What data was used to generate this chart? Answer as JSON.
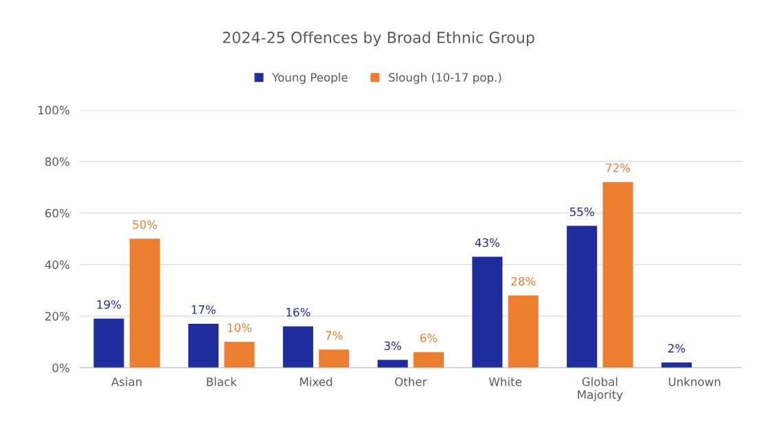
{
  "chart_data": {
    "type": "bar",
    "title": "2024-25 Offences by Broad Ethnic Group",
    "categories": [
      "Asian",
      "Black",
      "Mixed",
      "Other",
      "White",
      "Global\nMajority",
      "Unknown"
    ],
    "series": [
      {
        "name": "Young People",
        "color": "#1f2e9c",
        "values": [
          19,
          17,
          16,
          3,
          43,
          55,
          2
        ],
        "value_labels": [
          "19%",
          "17%",
          "16%",
          "3%",
          "43%",
          "55%",
          "2%"
        ]
      },
      {
        "name": "Slough (10-17 pop.)",
        "color": "#ed7d31",
        "values": [
          50,
          10,
          7,
          6,
          28,
          72,
          null
        ],
        "value_labels": [
          "50%",
          "10%",
          "7%",
          "6%",
          "28%",
          "72%",
          null
        ]
      }
    ],
    "ylim": [
      0,
      100
    ],
    "yticks": [
      {
        "value": 0,
        "label": "0%"
      },
      {
        "value": 20,
        "label": "20%"
      },
      {
        "value": 40,
        "label": "40%"
      },
      {
        "value": 60,
        "label": "60%"
      },
      {
        "value": 80,
        "label": "80%"
      },
      {
        "value": 100,
        "label": "100%"
      }
    ],
    "grid": "y",
    "legend": "top"
  }
}
